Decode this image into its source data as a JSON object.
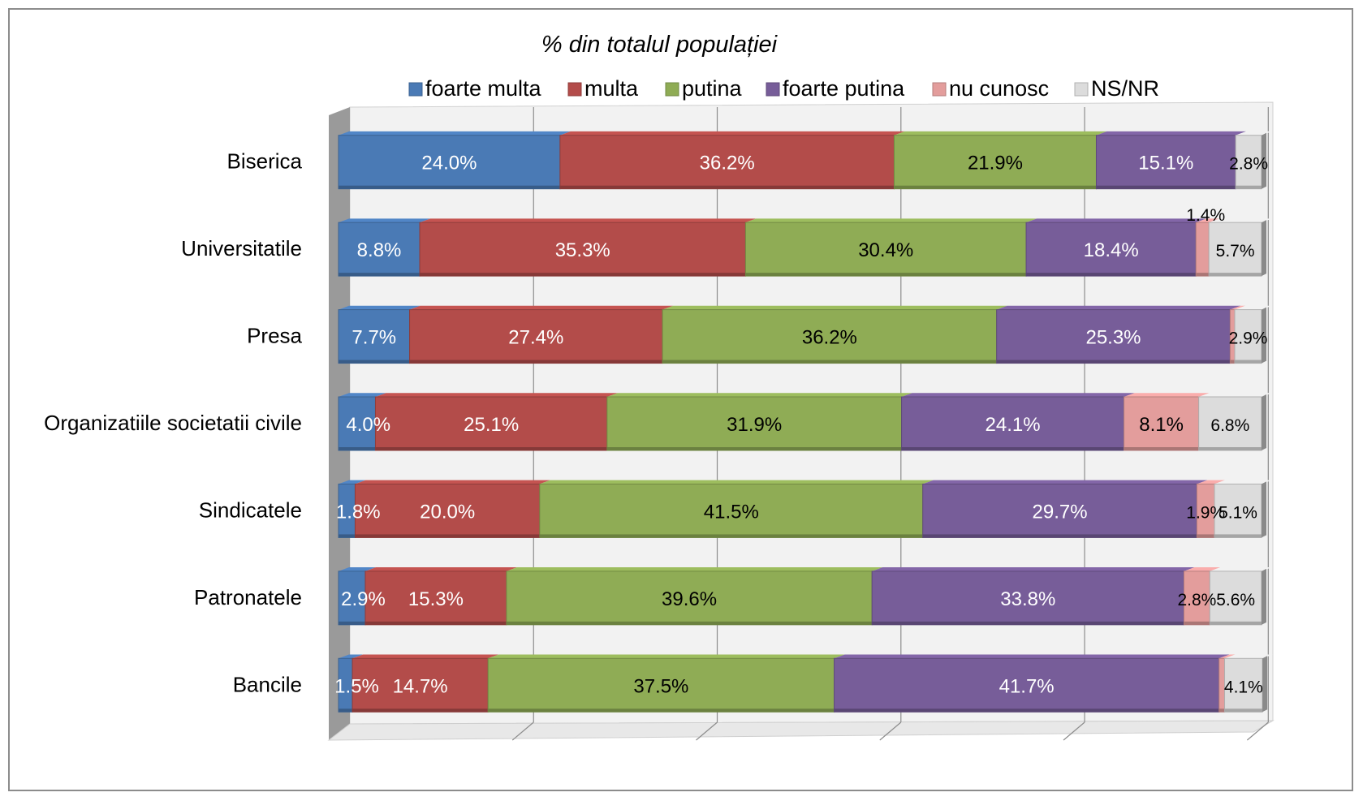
{
  "chart_data": {
    "type": "bar",
    "orientation": "horizontal",
    "stacked": true,
    "percent": true,
    "title": "% din totalul populației",
    "categories": [
      "Biserica",
      "Universitatile",
      "Presa",
      "Organizatiile societatii civile",
      "Sindicatele",
      "Patronatele",
      "Bancile"
    ],
    "series": [
      {
        "name": "foarte multa",
        "color": "#4a7ab5",
        "values": [
          24.0,
          8.8,
          7.7,
          4.0,
          1.8,
          2.9,
          1.5
        ],
        "labels": [
          "24.0%",
          "8.8%",
          "7.7%",
          "4.0%",
          "1.8%",
          "2.9%",
          "1.5%"
        ]
      },
      {
        "name": "multa",
        "color": "#b34c4a",
        "values": [
          36.2,
          35.3,
          27.4,
          25.1,
          20.0,
          15.3,
          14.7
        ],
        "labels": [
          "36.2%",
          "35.3%",
          "27.4%",
          "25.1%",
          "20.0%",
          "15.3%",
          "14.7%"
        ]
      },
      {
        "name": "putina",
        "color": "#8fac55",
        "values": [
          21.9,
          30.4,
          36.2,
          31.9,
          41.5,
          39.6,
          37.5
        ],
        "labels": [
          "21.9%",
          "30.4%",
          "36.2%",
          "31.9%",
          "41.5%",
          "39.6%",
          "37.5%"
        ]
      },
      {
        "name": "foarte putina",
        "color": "#775d99",
        "values": [
          15.1,
          18.4,
          25.3,
          24.1,
          29.7,
          33.8,
          41.7
        ],
        "labels": [
          "15.1%",
          "18.4%",
          "25.3%",
          "24.1%",
          "29.7%",
          "33.8%",
          "41.7%"
        ]
      },
      {
        "name": "nu cunosc",
        "color": "#e39d9c",
        "values": [
          0.0,
          1.4,
          0.5,
          8.1,
          1.9,
          2.8,
          0.6
        ],
        "labels": [
          "",
          "1.4%",
          "",
          "8.1%",
          "1.9%",
          "2.8%",
          ""
        ]
      },
      {
        "name": "NS/NR",
        "color": "#dcdcdc",
        "values": [
          2.8,
          5.7,
          2.9,
          6.8,
          5.1,
          5.6,
          4.1
        ],
        "labels": [
          "2.8%",
          "5.7%",
          "2.9%",
          "6.8%",
          "5.1%",
          "5.6%",
          "4.1%"
        ]
      }
    ],
    "xlim": [
      0,
      100
    ],
    "grid": true,
    "legend": "top"
  }
}
